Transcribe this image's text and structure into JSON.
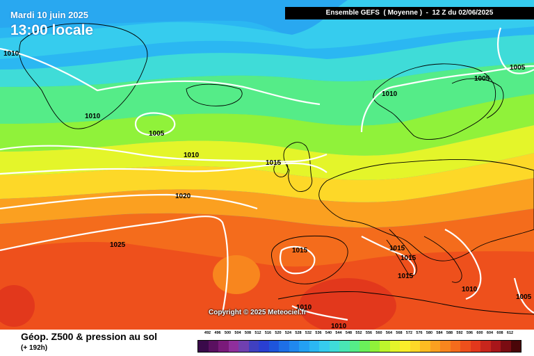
{
  "header": {
    "date": "Mardi 10 juin 2025",
    "local_time": "13:00 locale",
    "run_info": "Ensemble GEFS  ( Moyenne )  -  12 Z du 02/06/2025"
  },
  "copyright": "Copyright © 2025 Meteociel.fr",
  "footer": {
    "title": "Géop. Z500 & pression au sol",
    "subtitle": "(+ 192h)"
  },
  "legend": {
    "unit_scale_dam": [
      "492",
      "496",
      "500",
      "504",
      "508",
      "512",
      "516",
      "520",
      "524",
      "528",
      "532",
      "536",
      "540",
      "544",
      "548",
      "552",
      "556",
      "560",
      "564",
      "568",
      "572",
      "576",
      "580",
      "584",
      "588",
      "592",
      "596",
      "600",
      "604",
      "608",
      "612"
    ],
    "colors": [
      "#3a0a4a",
      "#5a1060",
      "#7a1a7a",
      "#8f2f9c",
      "#7040b0",
      "#4040c0",
      "#2a3fd2",
      "#1e55dc",
      "#1e6fe6",
      "#2088ee",
      "#23a0f2",
      "#2bb7f2",
      "#36ccee",
      "#3fdcd8",
      "#49e6b4",
      "#55ec88",
      "#6af05a",
      "#90f23a",
      "#bdf52c",
      "#e4f52a",
      "#fbee2a",
      "#fdd828",
      "#fdbc22",
      "#fba020",
      "#f8861e",
      "#f46c1c",
      "#ee501c",
      "#e2381c",
      "#c8261c",
      "#a8161a",
      "#7a0c12",
      "#4a0608"
    ]
  },
  "pressure_labels": [
    "1010",
    "1010",
    "1005",
    "1010",
    "1015",
    "1020",
    "1025",
    "1015",
    "1015",
    "1015",
    "1015",
    "1010",
    "1010",
    "1010",
    "1005",
    "1005",
    "1010",
    "1005"
  ],
  "regions": {
    "greenland": "Greenland",
    "iceland": "Iceland",
    "scandinavia": "Scandinavia",
    "iberia": "Iberia"
  }
}
